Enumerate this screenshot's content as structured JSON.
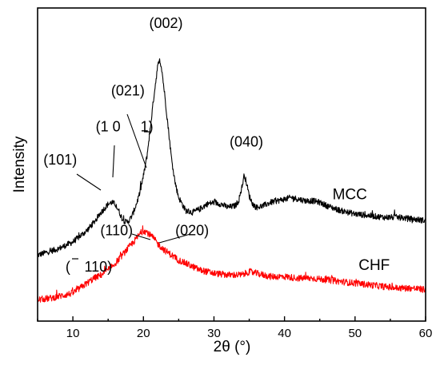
{
  "chart_data": {
    "type": "line",
    "xlabel": "2θ (°)",
    "ylabel": "Intensity",
    "xlim": [
      5,
      60
    ],
    "xticks": [
      10,
      20,
      30,
      40,
      50,
      60
    ],
    "yticks": [],
    "grid": false,
    "legend": "none",
    "series": [
      {
        "name": "MCC",
        "color": "#000000",
        "x": [
          5,
          8,
          10,
          12,
          13,
          14,
          15,
          15.5,
          16,
          16.5,
          17,
          17.5,
          18,
          18.5,
          19,
          19.5,
          20,
          20.5,
          21,
          21.5,
          22,
          22.3,
          22.6,
          23,
          23.5,
          24,
          24.5,
          25,
          26,
          27,
          28,
          29,
          30,
          31,
          32,
          33,
          33.5,
          34,
          34.3,
          34.6,
          35,
          35.5,
          36,
          37,
          38,
          39,
          40,
          41,
          42,
          43,
          44,
          45,
          46,
          48,
          50,
          52,
          54,
          56,
          58,
          60
        ],
        "y": [
          0.0,
          0.04,
          0.08,
          0.15,
          0.2,
          0.26,
          0.31,
          0.32,
          0.31,
          0.27,
          0.22,
          0.2,
          0.21,
          0.25,
          0.31,
          0.38,
          0.48,
          0.6,
          0.78,
          0.97,
          1.14,
          1.19,
          1.13,
          0.98,
          0.78,
          0.58,
          0.44,
          0.35,
          0.27,
          0.26,
          0.28,
          0.31,
          0.32,
          0.31,
          0.29,
          0.3,
          0.33,
          0.42,
          0.49,
          0.44,
          0.36,
          0.31,
          0.29,
          0.3,
          0.32,
          0.33,
          0.34,
          0.35,
          0.34,
          0.33,
          0.33,
          0.32,
          0.3,
          0.27,
          0.25,
          0.24,
          0.23,
          0.23,
          0.22,
          0.21
        ]
      },
      {
        "name": "CHF",
        "color": "#ff0000",
        "x": [
          5,
          7,
          9,
          10,
          11,
          12,
          13,
          14,
          15,
          16,
          17,
          18,
          19,
          19.5,
          20,
          20.5,
          21,
          21.5,
          22,
          23,
          24,
          25,
          26,
          27,
          28,
          30,
          32,
          34,
          35,
          36,
          37,
          38,
          40,
          42,
          44,
          46,
          48,
          50,
          52,
          54,
          56,
          58,
          60
        ],
        "y": [
          -0.27,
          -0.26,
          -0.24,
          -0.23,
          -0.2,
          -0.17,
          -0.14,
          -0.12,
          -0.09,
          -0.05,
          0.0,
          0.05,
          0.1,
          0.13,
          0.15,
          0.14,
          0.12,
          0.1,
          0.07,
          0.03,
          0.0,
          -0.03,
          -0.05,
          -0.07,
          -0.09,
          -0.11,
          -0.12,
          -0.12,
          -0.1,
          -0.11,
          -0.12,
          -0.13,
          -0.13,
          -0.14,
          -0.14,
          -0.15,
          -0.16,
          -0.17,
          -0.18,
          -0.19,
          -0.2,
          -0.2,
          -0.21
        ]
      }
    ],
    "series_labels": [
      {
        "text": "MCC",
        "x": 46.8,
        "y": 0.34
      },
      {
        "text": "CHF",
        "x": 50.5,
        "y": -0.09
      }
    ],
    "peak_annotations": [
      {
        "text": "(002)",
        "x": 23.2,
        "y": 1.38
      },
      {
        "text": "(021)",
        "x": 17.8,
        "y": 0.97
      },
      {
        "text": "(040)",
        "x": 34.6,
        "y": 0.66
      },
      {
        "text": "(101)",
        "x": 8.2,
        "y": 0.55
      },
      {
        "text": "(1 0",
        "x": 15.0,
        "y": 0.75
      },
      {
        "text": "1)",
        "x": 20.5,
        "y": 0.75
      },
      {
        "text": "(110)",
        "x": 16.2,
        "y": 0.12
      },
      {
        "text": "(020)",
        "x": 26.9,
        "y": 0.12
      },
      {
        "text": "(",
        "x": 9.3,
        "y": -0.1
      },
      {
        "text": "110)",
        "x": 13.6,
        "y": -0.1
      }
    ]
  }
}
